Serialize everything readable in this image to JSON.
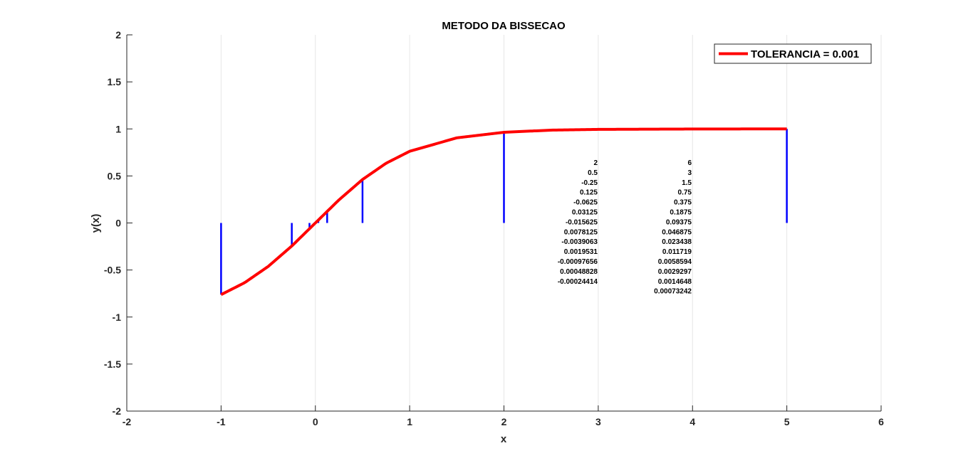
{
  "chart_data": {
    "type": "line",
    "title": "METODO DA BISSECAO",
    "xlabel": "x",
    "ylabel": "y(x)",
    "xlim": [
      -2,
      6
    ],
    "ylim": [
      -2,
      2
    ],
    "xticks": [
      -2,
      -1,
      0,
      1,
      2,
      3,
      4,
      5,
      6
    ],
    "xtick_labels": [
      "-2",
      "-1",
      "0",
      "1",
      "2",
      "3",
      "4",
      "5",
      "6"
    ],
    "yticks": [
      -2,
      -1.5,
      -1,
      -0.5,
      0,
      0.5,
      1,
      1.5,
      2
    ],
    "ytick_labels": [
      "-2",
      "-1.5",
      "-1",
      "-0.5",
      "0",
      "0.5",
      "1",
      "1.5",
      "2"
    ],
    "grid": "vertical",
    "legend": {
      "position": "top-right",
      "entries": [
        "TOLERANCIA = 0.001"
      ]
    },
    "series": [
      {
        "name": "TOLERANCIA = 0.001",
        "color": "#ff0000",
        "curve_x_range": [
          -1,
          5
        ],
        "x": [
          -1,
          -0.75,
          -0.5,
          -0.25,
          0,
          0.25,
          0.5,
          0.75,
          1,
          1.5,
          2,
          2.5,
          3,
          4,
          5
        ],
        "y": [
          -0.762,
          -0.635,
          -0.462,
          -0.245,
          0,
          0.245,
          0.462,
          0.635,
          0.762,
          0.905,
          0.964,
          0.987,
          0.995,
          0.999,
          1.0
        ]
      }
    ],
    "stems": {
      "color": "#0000ff",
      "x": [
        -1,
        -0.25,
        -0.0625,
        -0.015625,
        0.0078125,
        0.03125,
        0.125,
        0.5,
        2,
        5
      ],
      "y": [
        -0.762,
        -0.245,
        -0.0624,
        -0.0156,
        0.0078,
        0.0312,
        0.124,
        0.462,
        0.964,
        1.0
      ]
    },
    "annotation_table": {
      "col1": [
        "2",
        "0.5",
        "-0.25",
        "0.125",
        "-0.0625",
        "0.03125",
        "-0.015625",
        "0.0078125",
        "-0.0039063",
        "0.0019531",
        "-0.00097656",
        "0.00048828",
        "-0.00024414"
      ],
      "col2": [
        "6",
        "3",
        "1.5",
        "0.75",
        "0.375",
        "0.1875",
        "0.09375",
        "0.046875",
        "0.023438",
        "0.011719",
        "0.0058594",
        "0.0029297",
        "0.0014648",
        "0.00073242"
      ]
    }
  }
}
